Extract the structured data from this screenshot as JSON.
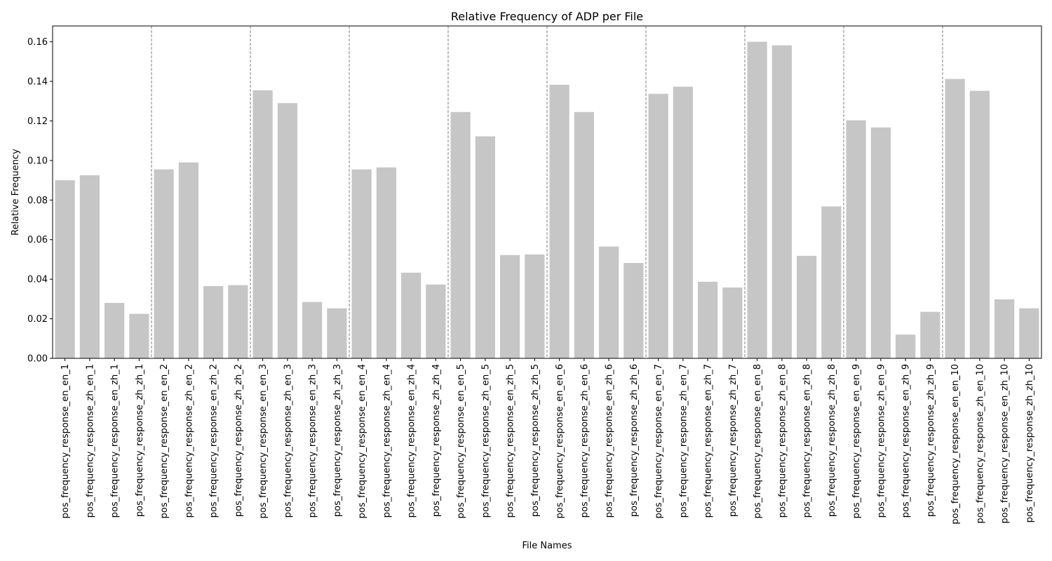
{
  "chart_data": {
    "type": "bar",
    "title": "Relative Frequency of ADP per File",
    "xlabel": "File Names",
    "ylabel": "Relative Frequency",
    "ylim": [
      0,
      0.168
    ],
    "yticks": [
      "0.00",
      "0.02",
      "0.04",
      "0.06",
      "0.08",
      "0.10",
      "0.12",
      "0.14",
      "0.16"
    ],
    "grid": false,
    "bar_color": "#c6c6c6",
    "separator_color": "#808080",
    "group_size": 4,
    "categories": [
      "pos_frequency_response_en_en_1",
      "pos_frequency_response_zh_en_1",
      "pos_frequency_response_en_zh_1",
      "pos_frequency_response_zh_zh_1",
      "pos_frequency_response_en_en_2",
      "pos_frequency_response_zh_en_2",
      "pos_frequency_response_en_zh_2",
      "pos_frequency_response_zh_zh_2",
      "pos_frequency_response_en_en_3",
      "pos_frequency_response_zh_en_3",
      "pos_frequency_response_en_zh_3",
      "pos_frequency_response_zh_zh_3",
      "pos_frequency_response_en_en_4",
      "pos_frequency_response_zh_en_4",
      "pos_frequency_response_en_zh_4",
      "pos_frequency_response_zh_zh_4",
      "pos_frequency_response_en_en_5",
      "pos_frequency_response_zh_en_5",
      "pos_frequency_response_en_zh_5",
      "pos_frequency_response_zh_zh_5",
      "pos_frequency_response_en_en_6",
      "pos_frequency_response_zh_en_6",
      "pos_frequency_response_en_zh_6",
      "pos_frequency_response_zh_zh_6",
      "pos_frequency_response_en_en_7",
      "pos_frequency_response_zh_en_7",
      "pos_frequency_response_en_zh_7",
      "pos_frequency_response_zh_zh_7",
      "pos_frequency_response_en_en_8",
      "pos_frequency_response_zh_en_8",
      "pos_frequency_response_en_zh_8",
      "pos_frequency_response_zh_zh_8",
      "pos_frequency_response_en_en_9",
      "pos_frequency_response_zh_en_9",
      "pos_frequency_response_en_zh_9",
      "pos_frequency_response_zh_zh_9",
      "pos_frequency_response_en_en_10",
      "pos_frequency_response_zh_en_10",
      "pos_frequency_response_en_zh_10",
      "pos_frequency_response_zh_zh_10"
    ],
    "values": [
      0.09,
      0.0925,
      0.028,
      0.0225,
      0.0955,
      0.099,
      0.0365,
      0.037,
      0.1355,
      0.129,
      0.0285,
      0.0253,
      0.0955,
      0.0965,
      0.0433,
      0.0373,
      0.1245,
      0.1122,
      0.0522,
      0.0525,
      0.1383,
      0.1245,
      0.0565,
      0.0482,
      0.1337,
      0.1373,
      0.0387,
      0.0358,
      0.16,
      0.1582,
      0.0518,
      0.0768,
      0.1203,
      0.1167,
      0.012,
      0.0235,
      0.1412,
      0.1352,
      0.0298,
      0.0253
    ]
  }
}
